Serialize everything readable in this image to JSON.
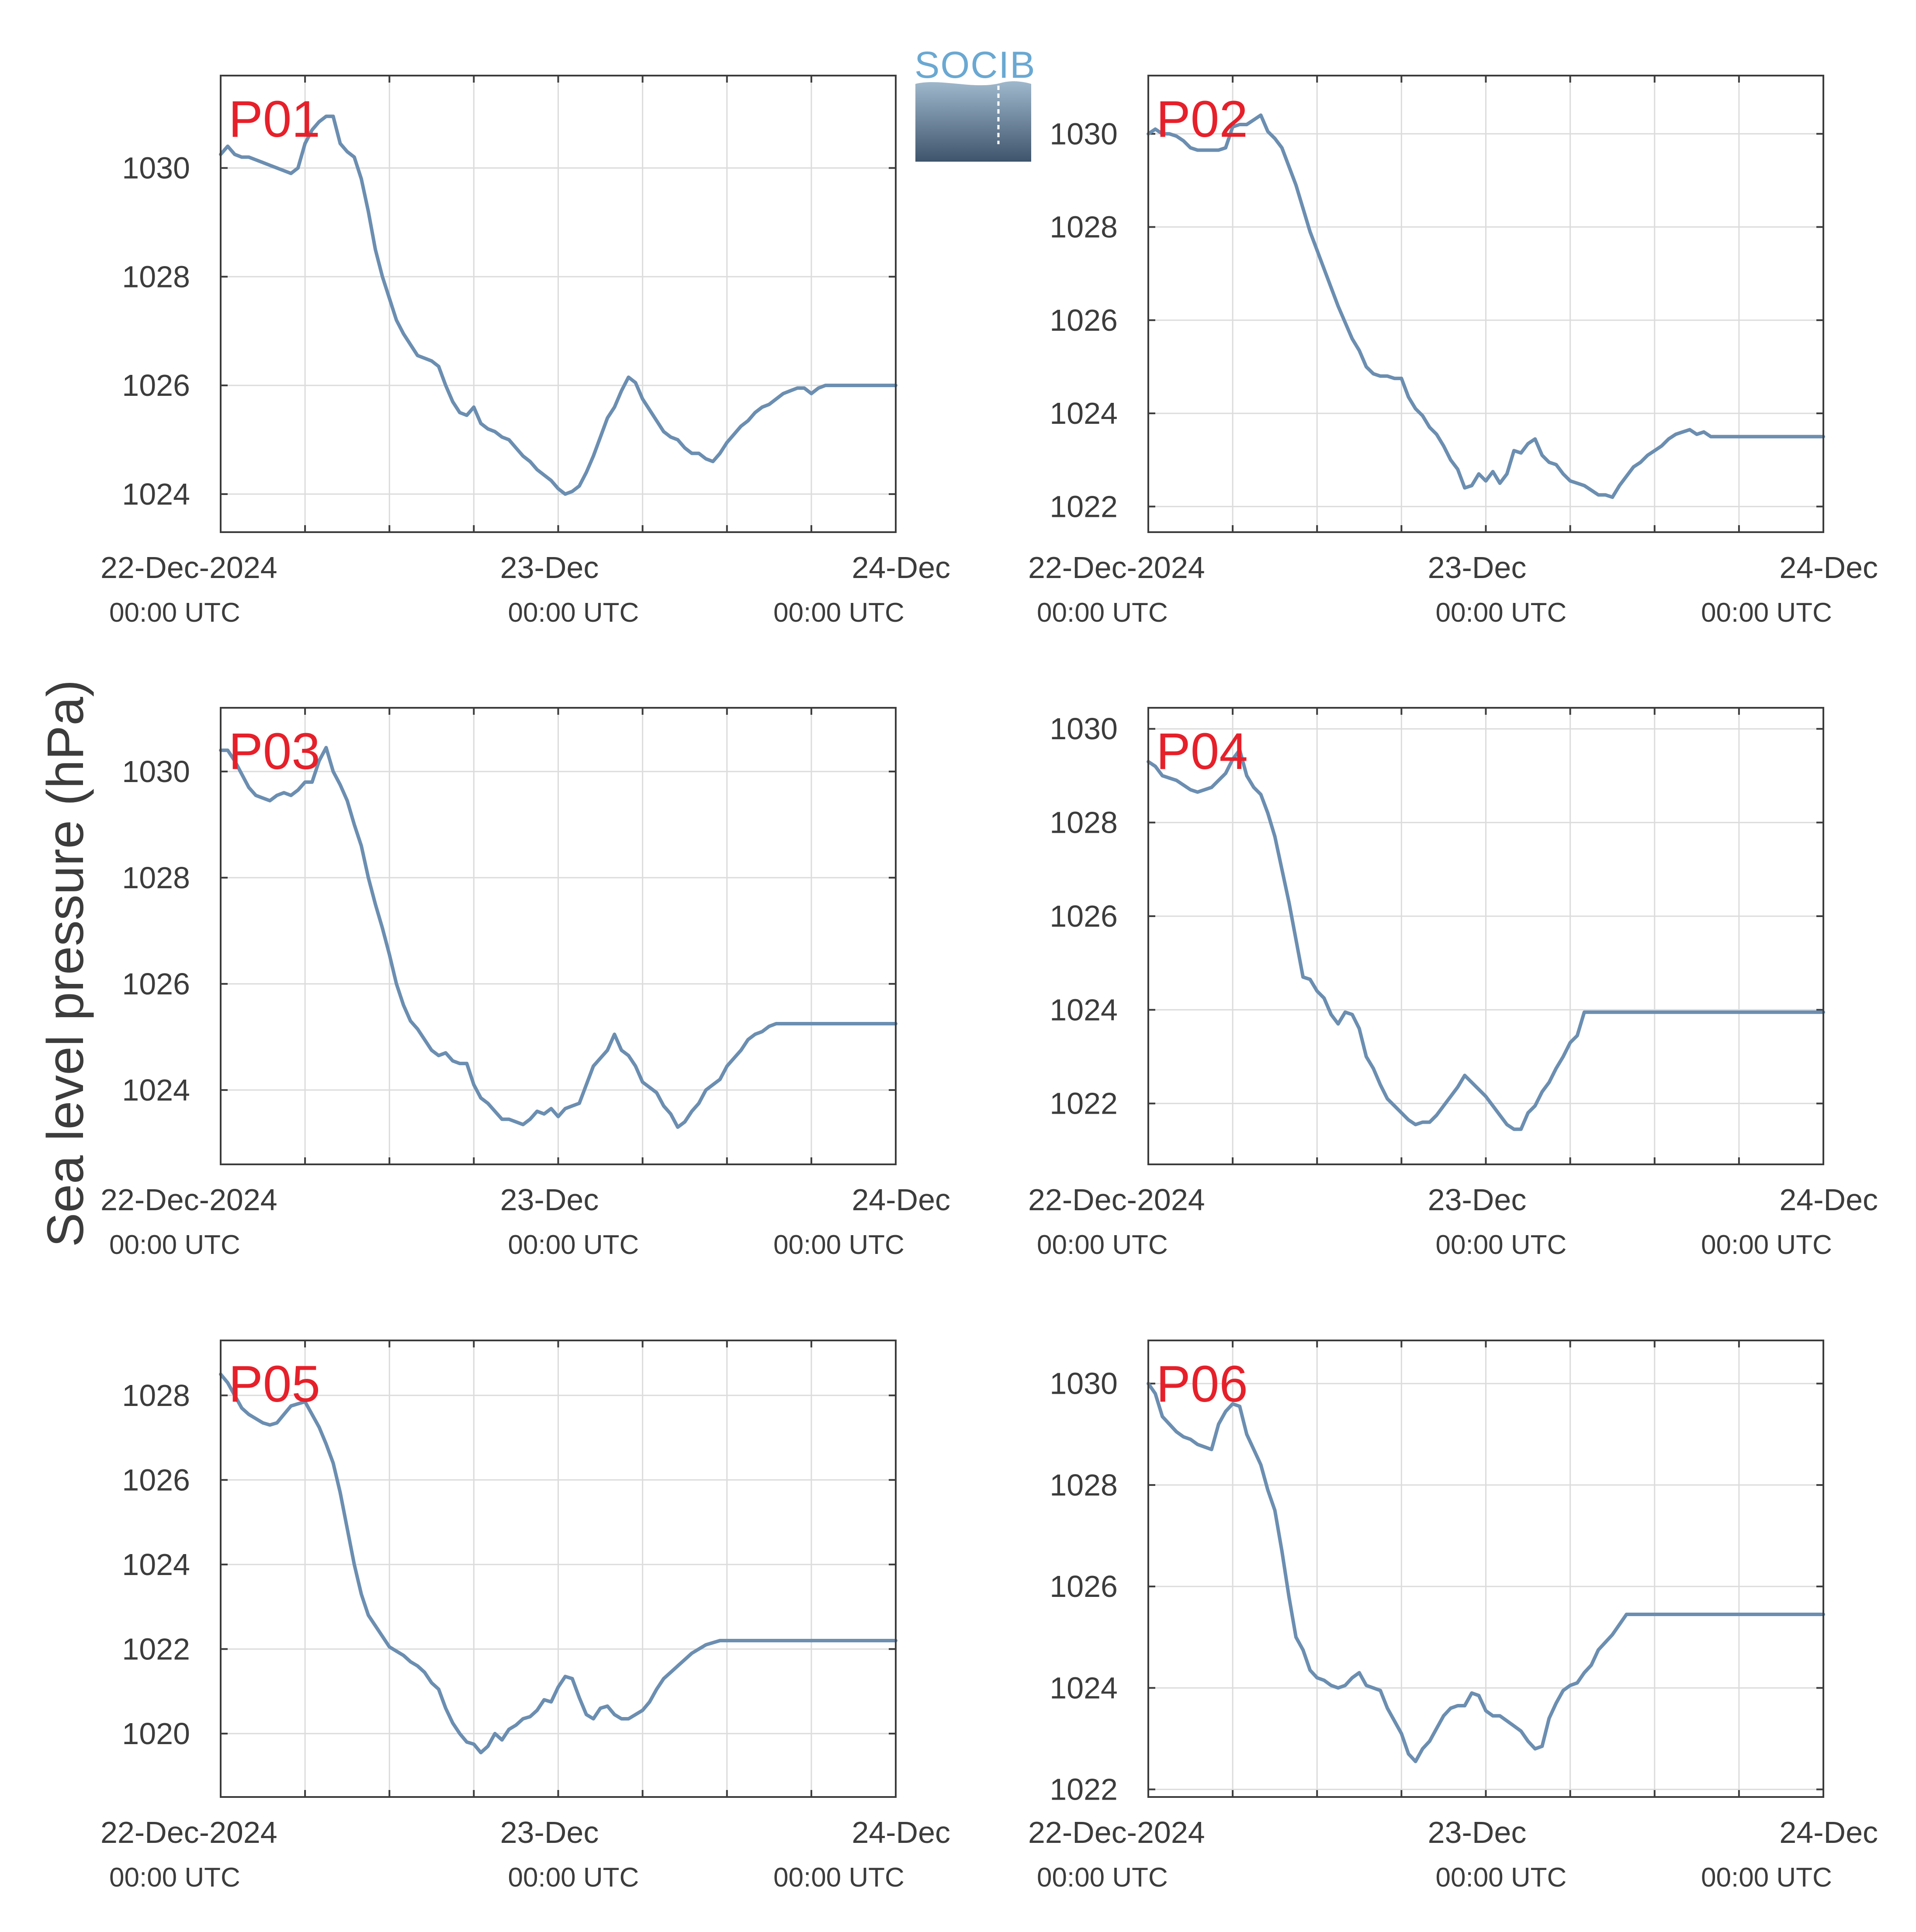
{
  "figure": {
    "ylabel": "Sea level pressure (hPa)",
    "logo_text": "SOCIB",
    "line_color": "#6b8eb1",
    "label_color": "#e6202a",
    "x_ticks": [
      {
        "date": "22-Dec-2024",
        "time": "00:00 UTC"
      },
      {
        "date": "23-Dec",
        "time": "00:00 UTC"
      },
      {
        "date": "24-Dec",
        "time": "00:00 UTC"
      }
    ]
  },
  "chart_data": [
    {
      "type": "line",
      "title": "P01",
      "xlim_hours": [
        0,
        48
      ],
      "ylim": [
        1023.3,
        1031.7
      ],
      "yticks": [
        1024,
        1026,
        1028,
        1030
      ],
      "grid": true,
      "x_hours": [
        0,
        0.5,
        1,
        1.5,
        2,
        2.5,
        3,
        3.5,
        4,
        4.5,
        5,
        5.5,
        6,
        6.5,
        7,
        7.5,
        8,
        8.5,
        9,
        9.5,
        10,
        10.5,
        11,
        11.5,
        12,
        12.5,
        13,
        13.5,
        14,
        14.5,
        15,
        15.5,
        16,
        16.5,
        17,
        17.5,
        18,
        18.5,
        19,
        19.5,
        20,
        20.5,
        21,
        21.5,
        22,
        22.5,
        23,
        23.5,
        24,
        24.5,
        25,
        25.5,
        26,
        26.5,
        27,
        27.5,
        28,
        28.5,
        29,
        29.5,
        30,
        30.5,
        31,
        31.5,
        32,
        32.5,
        33,
        33.5,
        34,
        34.5,
        35,
        35.5,
        36,
        36.5,
        37,
        37.5,
        38,
        38.5,
        39,
        39.5,
        40,
        40.5,
        41,
        41.5,
        42,
        42.5,
        43,
        43.5,
        44,
        44.5,
        45,
        45.5,
        46,
        46.5,
        47,
        47.5,
        48
      ],
      "values": [
        1030.25,
        1030.4,
        1030.25,
        1030.2,
        1030.2,
        1030.15,
        1030.1,
        1030.05,
        1030.0,
        1029.95,
        1029.9,
        1030.0,
        1030.45,
        1030.7,
        1030.85,
        1030.95,
        1030.95,
        1030.45,
        1030.3,
        1030.2,
        1029.8,
        1029.2,
        1028.5,
        1028.0,
        1027.6,
        1027.2,
        1026.95,
        1026.75,
        1026.55,
        1026.5,
        1026.45,
        1026.35,
        1026.0,
        1025.7,
        1025.5,
        1025.45,
        1025.6,
        1025.3,
        1025.2,
        1025.15,
        1025.05,
        1025.0,
        1024.85,
        1024.7,
        1024.6,
        1024.45,
        1024.35,
        1024.25,
        1024.1,
        1024.0,
        1024.05,
        1024.15,
        1024.4,
        1024.7,
        1025.05,
        1025.4,
        1025.6,
        1025.9,
        1026.15,
        1026.05,
        1025.75,
        1025.55,
        1025.35,
        1025.15,
        1025.05,
        1025.0,
        1024.85,
        1024.75,
        1024.75,
        1024.65,
        1024.6,
        1024.75,
        1024.95,
        1025.1,
        1025.25,
        1025.35,
        1025.5,
        1025.6,
        1025.65,
        1025.75,
        1025.85,
        1025.9,
        1025.95,
        1025.95,
        1025.85,
        1025.95,
        1026.0,
        1026.0,
        1026.0,
        1026.0,
        1026.0,
        1026.0,
        1026.0,
        1026.0,
        1026.0,
        1026.0,
        1026.0
      ]
    },
    {
      "type": "line",
      "title": "P02",
      "xlim_hours": [
        0,
        48
      ],
      "ylim": [
        1021.45,
        1031.25
      ],
      "yticks": [
        1022,
        1024,
        1026,
        1028,
        1030
      ],
      "grid": true,
      "x_hours": [
        0,
        0.5,
        1,
        1.5,
        2,
        2.5,
        3,
        3.5,
        4,
        4.5,
        5,
        5.5,
        6,
        6.5,
        7,
        7.5,
        8,
        8.5,
        9,
        9.5,
        10,
        10.5,
        11,
        11.5,
        12,
        12.5,
        13,
        13.5,
        14,
        14.5,
        15,
        15.5,
        16,
        16.5,
        17,
        17.5,
        18,
        18.5,
        19,
        19.5,
        20,
        20.5,
        21,
        21.5,
        22,
        22.5,
        23,
        23.5,
        24,
        24.5,
        25,
        25.5,
        26,
        26.5,
        27,
        27.5,
        28,
        28.5,
        29,
        29.5,
        30,
        30.5,
        31,
        31.5,
        32,
        32.5,
        33,
        33.5,
        34,
        34.5,
        35,
        35.5,
        36,
        36.5,
        37,
        37.5,
        38,
        38.5,
        39,
        39.5,
        40,
        40.5,
        41,
        41.5,
        42,
        42.5,
        43,
        43.5,
        44,
        44.5,
        45,
        45.5,
        46,
        46.5,
        47,
        47.5,
        48
      ],
      "values": [
        1030.0,
        1030.1,
        1030.0,
        1030.0,
        1029.95,
        1029.85,
        1029.7,
        1029.65,
        1029.65,
        1029.65,
        1029.65,
        1029.7,
        1030.15,
        1030.2,
        1030.2,
        1030.3,
        1030.4,
        1030.05,
        1029.9,
        1029.7,
        1029.3,
        1028.9,
        1028.4,
        1027.9,
        1027.5,
        1027.1,
        1026.7,
        1026.3,
        1025.95,
        1025.6,
        1025.35,
        1025.0,
        1024.85,
        1024.8,
        1024.8,
        1024.75,
        1024.75,
        1024.35,
        1024.1,
        1023.95,
        1023.7,
        1023.55,
        1023.3,
        1023.0,
        1022.8,
        1022.4,
        1022.45,
        1022.7,
        1022.55,
        1022.75,
        1022.5,
        1022.7,
        1023.2,
        1023.15,
        1023.35,
        1023.45,
        1023.1,
        1022.95,
        1022.9,
        1022.7,
        1022.55,
        1022.5,
        1022.45,
        1022.35,
        1022.25,
        1022.25,
        1022.2,
        1022.45,
        1022.65,
        1022.85,
        1022.95,
        1023.1,
        1023.2,
        1023.3,
        1023.45,
        1023.55,
        1023.6,
        1023.65,
        1023.55,
        1023.6,
        1023.5,
        1023.5,
        1023.5,
        1023.5,
        1023.5,
        1023.5,
        1023.5,
        1023.5,
        1023.5,
        1023.5,
        1023.5,
        1023.5,
        1023.5,
        1023.5,
        1023.5,
        1023.5,
        1023.5
      ]
    },
    {
      "type": "line",
      "title": "P03",
      "xlim_hours": [
        0,
        48
      ],
      "ylim": [
        1022.6,
        1031.2
      ],
      "yticks": [
        1024,
        1026,
        1028,
        1030
      ],
      "grid": true,
      "x_hours": [
        0,
        0.5,
        1,
        1.5,
        2,
        2.5,
        3,
        3.5,
        4,
        4.5,
        5,
        5.5,
        6,
        6.5,
        7,
        7.5,
        8,
        8.5,
        9,
        9.5,
        10,
        10.5,
        11,
        11.5,
        12,
        12.5,
        13,
        13.5,
        14,
        14.5,
        15,
        15.5,
        16,
        16.5,
        17,
        17.5,
        18,
        18.5,
        19,
        19.5,
        20,
        20.5,
        21,
        21.5,
        22,
        22.5,
        23,
        23.5,
        24,
        24.5,
        25,
        25.5,
        26,
        26.5,
        27,
        27.5,
        28,
        28.5,
        29,
        29.5,
        30,
        30.5,
        31,
        31.5,
        32,
        32.5,
        33,
        33.5,
        34,
        34.5,
        35,
        35.5,
        36,
        36.5,
        37,
        37.5,
        38,
        38.5,
        39,
        39.5,
        40,
        40.5,
        41,
        41.5,
        42,
        42.5,
        43,
        43.5,
        44,
        44.5,
        45,
        45.5,
        46,
        46.5,
        47,
        47.5,
        48
      ],
      "values": [
        1030.4,
        1030.4,
        1030.2,
        1029.95,
        1029.7,
        1029.55,
        1029.5,
        1029.45,
        1029.55,
        1029.6,
        1029.55,
        1029.65,
        1029.8,
        1029.8,
        1030.2,
        1030.45,
        1030.0,
        1029.75,
        1029.45,
        1029.0,
        1028.6,
        1028.0,
        1027.5,
        1027.05,
        1026.55,
        1026.0,
        1025.6,
        1025.3,
        1025.15,
        1024.95,
        1024.75,
        1024.65,
        1024.7,
        1024.55,
        1024.5,
        1024.5,
        1024.1,
        1023.85,
        1023.75,
        1023.6,
        1023.45,
        1023.45,
        1023.4,
        1023.35,
        1023.45,
        1023.6,
        1023.55,
        1023.65,
        1023.5,
        1023.65,
        1023.7,
        1023.75,
        1024.1,
        1024.45,
        1024.6,
        1024.75,
        1025.05,
        1024.75,
        1024.65,
        1024.45,
        1024.15,
        1024.05,
        1023.95,
        1023.7,
        1023.55,
        1023.3,
        1023.4,
        1023.6,
        1023.75,
        1024.0,
        1024.1,
        1024.2,
        1024.45,
        1024.6,
        1024.75,
        1024.95,
        1025.05,
        1025.1,
        1025.2,
        1025.25,
        1025.25,
        1025.25,
        1025.25,
        1025.25,
        1025.25,
        1025.25,
        1025.25,
        1025.25,
        1025.25,
        1025.25,
        1025.25,
        1025.25,
        1025.25,
        1025.25,
        1025.25,
        1025.25,
        1025.25
      ]
    },
    {
      "type": "line",
      "title": "P04",
      "xlim_hours": [
        0,
        48
      ],
      "ylim": [
        1020.7,
        1030.45
      ],
      "yticks": [
        1022,
        1024,
        1026,
        1028,
        1030
      ],
      "grid": true,
      "x_hours": [
        0,
        0.5,
        1,
        1.5,
        2,
        2.5,
        3,
        3.5,
        4,
        4.5,
        5,
        5.5,
        6,
        6.5,
        7,
        7.5,
        8,
        8.5,
        9,
        9.5,
        10,
        10.5,
        11,
        11.5,
        12,
        12.5,
        13,
        13.5,
        14,
        14.5,
        15,
        15.5,
        16,
        16.5,
        17,
        17.5,
        18,
        18.5,
        19,
        19.5,
        20,
        20.5,
        21,
        21.5,
        22,
        22.5,
        23,
        23.5,
        24,
        24.5,
        25,
        25.5,
        26,
        26.5,
        27,
        27.5,
        28,
        28.5,
        29,
        29.5,
        30,
        30.5,
        31,
        31.5,
        32,
        32.5,
        33,
        33.5,
        34,
        34.5,
        35,
        35.5,
        36,
        36.5,
        37,
        37.5,
        38,
        38.5,
        39,
        39.5,
        40,
        40.5,
        41,
        41.5,
        42,
        42.5,
        43,
        43.5,
        44,
        44.5,
        45,
        45.5,
        46,
        46.5,
        47,
        47.5,
        48
      ],
      "values": [
        1029.3,
        1029.2,
        1029.0,
        1028.95,
        1028.9,
        1028.8,
        1028.7,
        1028.65,
        1028.7,
        1028.75,
        1028.9,
        1029.05,
        1029.35,
        1029.55,
        1029.0,
        1028.75,
        1028.6,
        1028.2,
        1027.7,
        1027.0,
        1026.3,
        1025.5,
        1024.7,
        1024.65,
        1024.4,
        1024.25,
        1023.9,
        1023.7,
        1023.95,
        1023.9,
        1023.6,
        1023.0,
        1022.75,
        1022.4,
        1022.1,
        1021.95,
        1021.8,
        1021.65,
        1021.55,
        1021.6,
        1021.6,
        1021.75,
        1021.95,
        1022.15,
        1022.35,
        1022.6,
        1022.45,
        1022.3,
        1022.15,
        1021.95,
        1021.75,
        1021.55,
        1021.45,
        1021.45,
        1021.8,
        1021.95,
        1022.25,
        1022.45,
        1022.75,
        1023.0,
        1023.3,
        1023.45,
        1023.95,
        1023.95,
        1023.95,
        1023.95,
        1023.95,
        1023.95,
        1023.95,
        1023.95,
        1023.95,
        1023.95,
        1023.95,
        1023.95,
        1023.95,
        1023.95,
        1023.95,
        1023.95,
        1023.95,
        1023.95,
        1023.95,
        1023.95,
        1023.95,
        1023.95,
        1023.95,
        1023.95,
        1023.95,
        1023.95,
        1023.95,
        1023.95,
        1023.95,
        1023.95,
        1023.95,
        1023.95,
        1023.95,
        1023.95,
        1023.95
      ]
    },
    {
      "type": "line",
      "title": "P05",
      "xlim_hours": [
        0,
        48
      ],
      "ylim": [
        1018.5,
        1029.3
      ],
      "yticks": [
        1020,
        1022,
        1024,
        1026,
        1028
      ],
      "grid": true,
      "x_hours": [
        0,
        0.5,
        1,
        1.5,
        2,
        2.5,
        3,
        3.5,
        4,
        4.5,
        5,
        5.5,
        6,
        6.5,
        7,
        7.5,
        8,
        8.5,
        9,
        9.5,
        10,
        10.5,
        11,
        11.5,
        12,
        12.5,
        13,
        13.5,
        14,
        14.5,
        15,
        15.5,
        16,
        16.5,
        17,
        17.5,
        18,
        18.5,
        19,
        19.5,
        20,
        20.5,
        21,
        21.5,
        22,
        22.5,
        23,
        23.5,
        24,
        24.5,
        25,
        25.5,
        26,
        26.5,
        27,
        27.5,
        28,
        28.5,
        29,
        29.5,
        30,
        30.5,
        31,
        31.5,
        32,
        32.5,
        33,
        33.5,
        34,
        34.5,
        35,
        35.5,
        36,
        36.5,
        37,
        37.5,
        38,
        38.5,
        39,
        39.5,
        40,
        40.5,
        41,
        41.5,
        42,
        42.5,
        43,
        43.5,
        44,
        44.5,
        45,
        45.5,
        46,
        46.5,
        47,
        47.5,
        48
      ],
      "values": [
        1028.5,
        1028.3,
        1028.0,
        1027.7,
        1027.55,
        1027.45,
        1027.35,
        1027.3,
        1027.35,
        1027.55,
        1027.75,
        1027.8,
        1027.85,
        1027.55,
        1027.25,
        1026.85,
        1026.4,
        1025.7,
        1024.85,
        1024.0,
        1023.3,
        1022.8,
        1022.55,
        1022.3,
        1022.05,
        1021.95,
        1021.85,
        1021.7,
        1021.6,
        1021.45,
        1021.2,
        1021.05,
        1020.6,
        1020.25,
        1020.0,
        1019.8,
        1019.75,
        1019.55,
        1019.7,
        1020.0,
        1019.85,
        1020.1,
        1020.2,
        1020.35,
        1020.4,
        1020.55,
        1020.8,
        1020.75,
        1021.1,
        1021.35,
        1021.3,
        1020.85,
        1020.45,
        1020.35,
        1020.6,
        1020.65,
        1020.45,
        1020.35,
        1020.35,
        1020.45,
        1020.55,
        1020.75,
        1021.05,
        1021.3,
        1021.45,
        1021.6,
        1021.75,
        1021.9,
        1022.0,
        1022.1,
        1022.15,
        1022.2,
        1022.2,
        1022.2,
        1022.2,
        1022.2,
        1022.2,
        1022.2,
        1022.2,
        1022.2,
        1022.2,
        1022.2,
        1022.2,
        1022.2,
        1022.2,
        1022.2,
        1022.2,
        1022.2,
        1022.2,
        1022.2,
        1022.2,
        1022.2,
        1022.2,
        1022.2,
        1022.2,
        1022.2,
        1022.2
      ]
    },
    {
      "type": "line",
      "title": "P06",
      "xlim_hours": [
        0,
        48
      ],
      "ylim": [
        1021.85,
        1030.85
      ],
      "yticks": [
        1022,
        1024,
        1026,
        1028,
        1030
      ],
      "grid": true,
      "x_hours": [
        0,
        0.5,
        1,
        1.5,
        2,
        2.5,
        3,
        3.5,
        4,
        4.5,
        5,
        5.5,
        6,
        6.5,
        7,
        7.5,
        8,
        8.5,
        9,
        9.5,
        10,
        10.5,
        11,
        11.5,
        12,
        12.5,
        13,
        13.5,
        14,
        14.5,
        15,
        15.5,
        16,
        16.5,
        17,
        17.5,
        18,
        18.5,
        19,
        19.5,
        20,
        20.5,
        21,
        21.5,
        22,
        22.5,
        23,
        23.5,
        24,
        24.5,
        25,
        25.5,
        26,
        26.5,
        27,
        27.5,
        28,
        28.5,
        29,
        29.5,
        30,
        30.5,
        31,
        31.5,
        32,
        32.5,
        33,
        33.5,
        34,
        34.5,
        35,
        35.5,
        36,
        36.5,
        37,
        37.5,
        38,
        38.5,
        39,
        39.5,
        40,
        40.5,
        41,
        41.5,
        42,
        42.5,
        43,
        43.5,
        44,
        44.5,
        45,
        45.5,
        46,
        46.5,
        47,
        47.5,
        48
      ],
      "values": [
        1030.0,
        1029.8,
        1029.35,
        1029.2,
        1029.05,
        1028.95,
        1028.9,
        1028.8,
        1028.75,
        1028.7,
        1029.2,
        1029.45,
        1029.6,
        1029.55,
        1029.0,
        1028.7,
        1028.4,
        1027.9,
        1027.5,
        1026.7,
        1025.8,
        1025.0,
        1024.75,
        1024.35,
        1024.2,
        1024.15,
        1024.05,
        1024.0,
        1024.05,
        1024.2,
        1024.3,
        1024.05,
        1024.0,
        1023.95,
        1023.6,
        1023.35,
        1023.1,
        1022.7,
        1022.55,
        1022.8,
        1022.95,
        1023.2,
        1023.45,
        1023.6,
        1023.65,
        1023.65,
        1023.9,
        1023.85,
        1023.55,
        1023.45,
        1023.45,
        1023.35,
        1023.25,
        1023.15,
        1022.95,
        1022.8,
        1022.85,
        1023.4,
        1023.7,
        1023.95,
        1024.05,
        1024.1,
        1024.3,
        1024.45,
        1024.75,
        1024.9,
        1025.05,
        1025.25,
        1025.45,
        1025.45,
        1025.45,
        1025.45,
        1025.45,
        1025.45,
        1025.45,
        1025.45,
        1025.45,
        1025.45,
        1025.45,
        1025.45,
        1025.45,
        1025.45,
        1025.45,
        1025.45,
        1025.45,
        1025.45,
        1025.45,
        1025.45,
        1025.45,
        1025.45,
        1025.45,
        1025.45,
        1025.45,
        1025.45,
        1025.45,
        1025.45,
        1025.45
      ]
    }
  ]
}
